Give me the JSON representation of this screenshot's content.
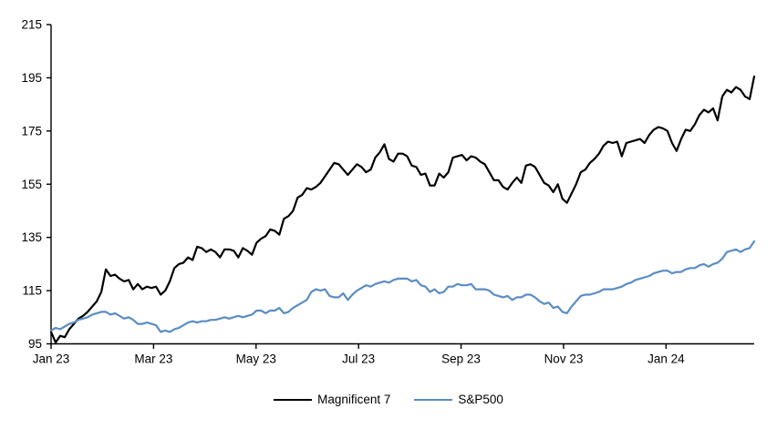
{
  "chart_data": {
    "type": "line",
    "title": "",
    "subtitle": "",
    "grid": false,
    "legend_position": "bottom-center",
    "x_axis": {
      "tick_labels": [
        "Jan 23",
        "Mar 23",
        "May 23",
        "Jul 23",
        "Sep 23",
        "Nov 23",
        "Jan 24"
      ],
      "tick_positions_months": [
        0,
        2,
        4,
        6,
        8,
        10,
        12
      ],
      "domain_months": [
        0,
        13.72
      ],
      "note": "months elapsed since Jan 2023; series values are evenly spaced across this domain"
    },
    "y_axis": {
      "ticks": [
        95,
        115,
        135,
        155,
        175,
        195,
        215
      ],
      "range": [
        95,
        215
      ],
      "label": ""
    },
    "series": [
      {
        "name": "Magnificent 7",
        "color": "#000000",
        "line_width": 2.2,
        "values": [
          99.5,
          95.5,
          98,
          97.5,
          100.5,
          102.5,
          104.5,
          105.5,
          107,
          109,
          111,
          114.5,
          123,
          120.5,
          121,
          119.5,
          118.5,
          119,
          115.5,
          117.5,
          115.5,
          116.5,
          116,
          116.5,
          113.5,
          115,
          118.5,
          123.5,
          125,
          125.5,
          127.5,
          126.5,
          131.5,
          131,
          129.5,
          130.5,
          129.5,
          127.5,
          130.5,
          130.5,
          130,
          127.5,
          131,
          130,
          128.5,
          133,
          134.5,
          135.5,
          138,
          137.5,
          136,
          142,
          143,
          145,
          150,
          151,
          153.5,
          153,
          154,
          155.5,
          158,
          160.5,
          163,
          162.5,
          160.5,
          158.5,
          160.5,
          162.5,
          161.5,
          159.5,
          160.5,
          165,
          167,
          170,
          164.5,
          163.5,
          166.5,
          166.5,
          165.5,
          162,
          161.5,
          158.5,
          159,
          154.5,
          154.5,
          159,
          157.5,
          159.5,
          165,
          165.5,
          166,
          164,
          165.5,
          165,
          163.5,
          162.5,
          159.5,
          156.5,
          156.5,
          154,
          153,
          155.5,
          157.5,
          155.5,
          162,
          162.5,
          161.5,
          158.5,
          155.5,
          154.5,
          152,
          155,
          149.5,
          148,
          151.5,
          155,
          159.5,
          160.5,
          163,
          164.5,
          166.5,
          169.5,
          171,
          170.5,
          171,
          165.5,
          170.5,
          171,
          171.5,
          172,
          170.5,
          173.5,
          175.5,
          176.5,
          176,
          175,
          170.5,
          167.5,
          172,
          175.5,
          175,
          177.5,
          181,
          183,
          182,
          183.5,
          179,
          188,
          190.5,
          189.5,
          191.5,
          190.5,
          188,
          187,
          195.5
        ]
      },
      {
        "name": "S&P500",
        "color": "#5B8DC3",
        "line_width": 2.2,
        "values": [
          100,
          101,
          100.5,
          101.5,
          102.5,
          103,
          104,
          104.5,
          105,
          106,
          106.5,
          107,
          107,
          106,
          106.5,
          105.5,
          104.5,
          105,
          104,
          102.5,
          102.5,
          103,
          102.5,
          102,
          99.5,
          100,
          99.5,
          100.5,
          101,
          102,
          103,
          103.5,
          103,
          103.5,
          103.5,
          104,
          104,
          104.5,
          105,
          104.5,
          105,
          105.5,
          105,
          105.5,
          106,
          107.5,
          107.5,
          106.5,
          107.5,
          107.5,
          108.5,
          106.5,
          107,
          108.5,
          109.5,
          110.5,
          111.5,
          114.5,
          115.5,
          115,
          115.5,
          113,
          112.5,
          112.5,
          114,
          111.5,
          113.5,
          115,
          116,
          117,
          116.5,
          117.5,
          118,
          118.5,
          118,
          119,
          119.5,
          119.5,
          119.5,
          118.5,
          119,
          117,
          116.5,
          114.5,
          115.5,
          114,
          114.5,
          116.5,
          116.5,
          117.5,
          117,
          117,
          117.5,
          115.5,
          115.5,
          115.5,
          115,
          113.5,
          113,
          112.5,
          113,
          111.5,
          112.5,
          112.5,
          113.5,
          113.5,
          112.5,
          111,
          110,
          110.5,
          108.5,
          109,
          107,
          106.5,
          109,
          111,
          113,
          113.5,
          113.5,
          114,
          114.5,
          115.5,
          115.5,
          115.5,
          116,
          116.5,
          117.5,
          118,
          119,
          119.5,
          120,
          120.5,
          121.5,
          122,
          122.5,
          122.5,
          121.5,
          122,
          122,
          123,
          123.5,
          123.5,
          124.5,
          125,
          124,
          125,
          125.5,
          127,
          129.5,
          130,
          130.5,
          129.5,
          130.5,
          131,
          133.5
        ]
      }
    ],
    "axis_color": "#000000"
  }
}
